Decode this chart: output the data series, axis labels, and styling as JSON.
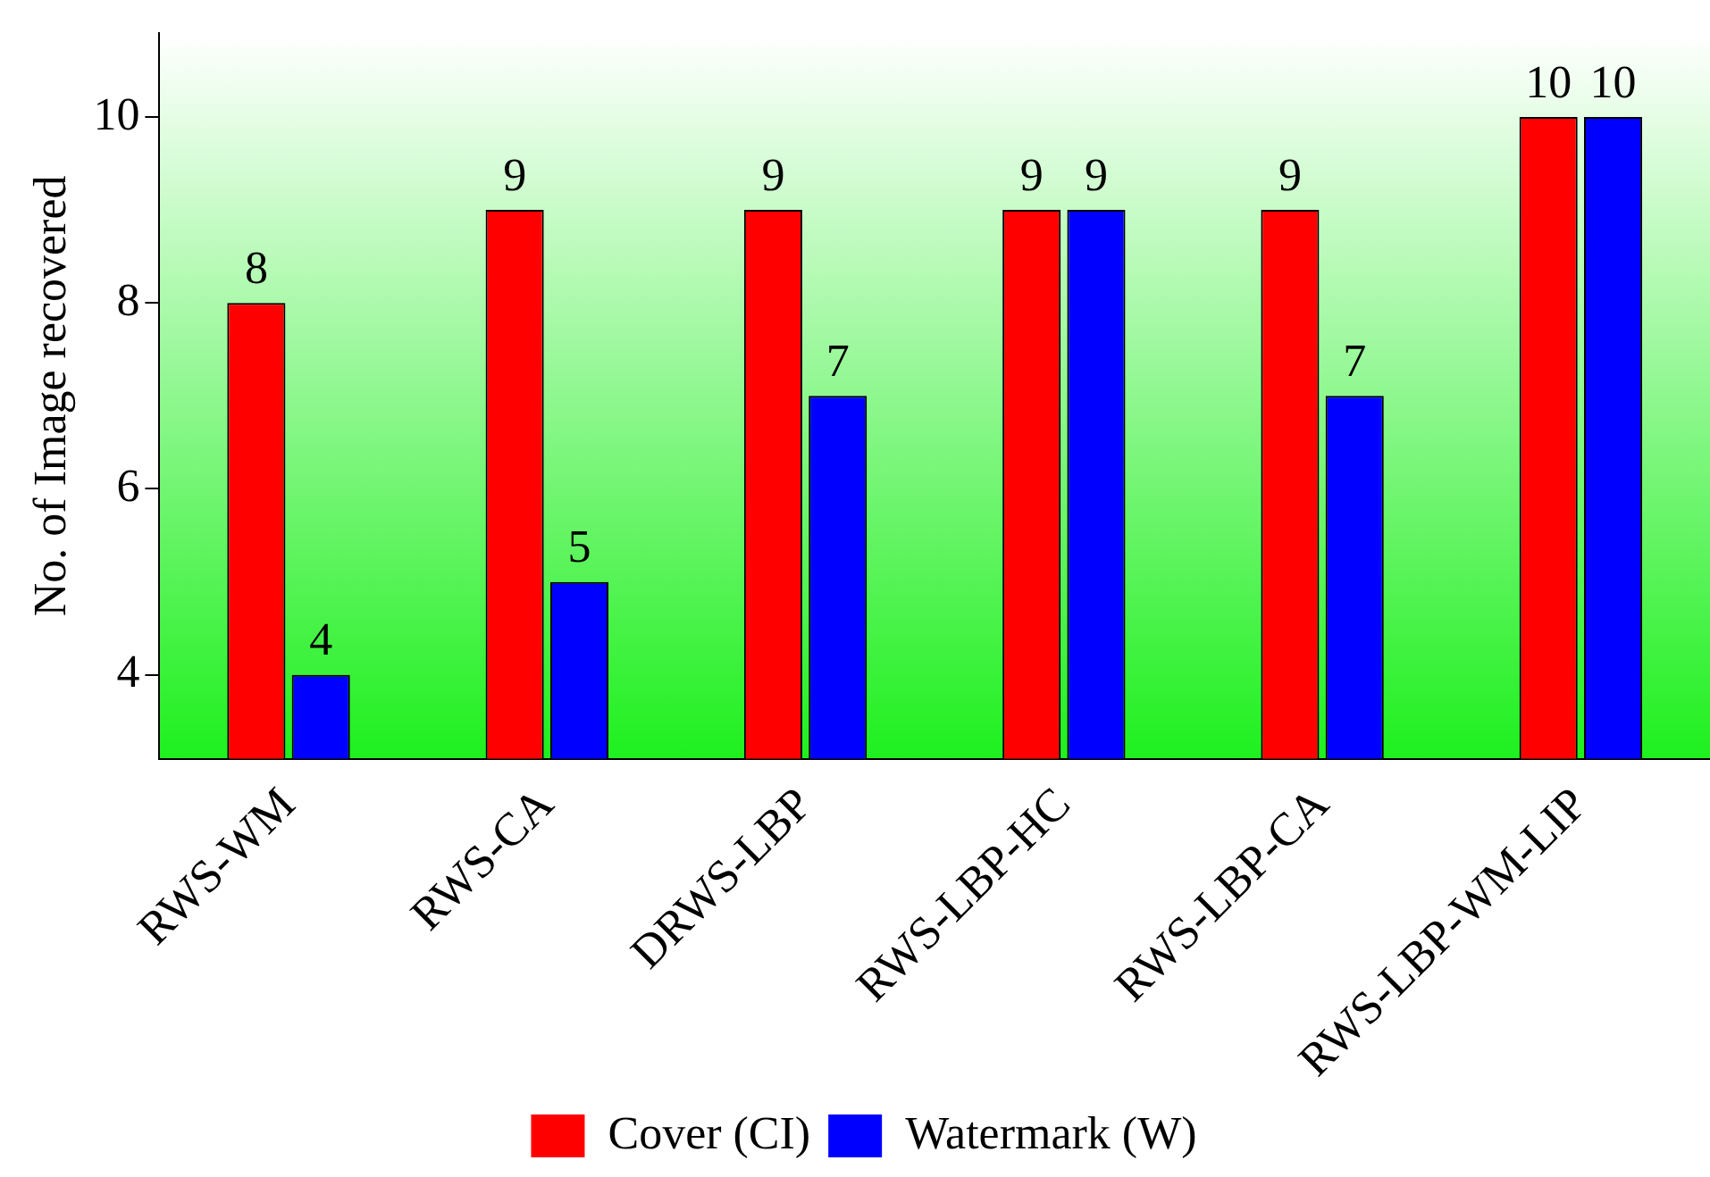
{
  "chart_data": {
    "type": "bar",
    "ylabel": "No. of Image recovered",
    "categories": [
      "RWS-WM",
      "RWS-CA",
      "DRWS-LBP",
      "RWS-LBP-HC",
      "RWS-LBP-CA",
      "RWS-LBP-WM-LIP"
    ],
    "series": [
      {
        "name": "Cover (CI)",
        "color": "#ff0000",
        "values": [
          8,
          9,
          9,
          9,
          9,
          10
        ]
      },
      {
        "name": "Watermark (W)",
        "color": "#0000ff",
        "values": [
          4,
          5,
          7,
          9,
          7,
          10
        ]
      }
    ],
    "ylim": [
      3.1,
      10.9
    ],
    "yticks": [
      4,
      6,
      8,
      10
    ],
    "grid": false,
    "legend": "bottom",
    "data_labels": true
  }
}
